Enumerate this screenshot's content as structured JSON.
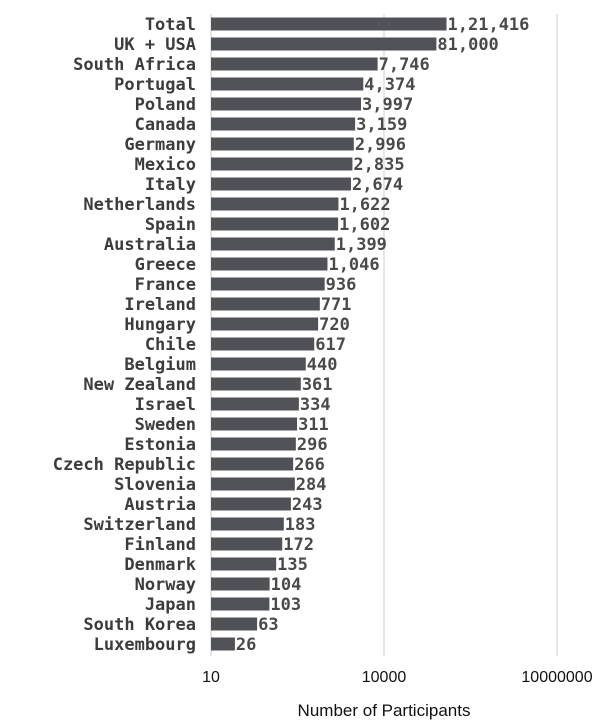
{
  "chart_data": {
    "type": "bar",
    "orientation": "horizontal",
    "xlabel": "Number of Participants",
    "ylabel": "",
    "x_scale": "log",
    "xlim": [
      10,
      10000000
    ],
    "x_ticks": [
      10,
      10000,
      10000000
    ],
    "x_tick_labels": [
      "10",
      "10000",
      "10000000"
    ],
    "grid": "vertical lines at major ticks",
    "bar_color": "#505257",
    "categories": [
      "Total",
      "UK + USA",
      "South Africa",
      "Portugal",
      "Poland",
      "Canada",
      "Germany",
      "Mexico",
      "Italy",
      "Netherlands",
      "Spain",
      "Australia",
      "Greece",
      "France",
      "Ireland",
      "Hungary",
      "Chile",
      "Belgium",
      "New Zealand",
      "Israel",
      "Sweden",
      "Estonia",
      "Czech Republic",
      "Slovenia",
      "Austria",
      "Switzerland",
      "Finland",
      "Denmark",
      "Norway",
      "Japan",
      "South Korea",
      "Luxembourg"
    ],
    "values": [
      121416,
      81000,
      7746,
      4374,
      3997,
      3159,
      2996,
      2835,
      2674,
      1622,
      1602,
      1399,
      1046,
      936,
      771,
      720,
      617,
      440,
      361,
      334,
      311,
      296,
      266,
      284,
      243,
      183,
      172,
      135,
      104,
      103,
      63,
      26
    ],
    "value_labels": [
      "1,21,416",
      "81,000",
      "7,746",
      "4,374",
      "3,997",
      "3,159",
      "2,996",
      "2,835",
      "2,674",
      "1,622",
      "1,602",
      "1,399",
      "1,046",
      "936",
      "771",
      "720",
      "617",
      "440",
      "361",
      "334",
      "311",
      "296",
      "266",
      "284",
      "243",
      "183",
      "172",
      "135",
      "104",
      "103",
      "63",
      "26"
    ]
  }
}
